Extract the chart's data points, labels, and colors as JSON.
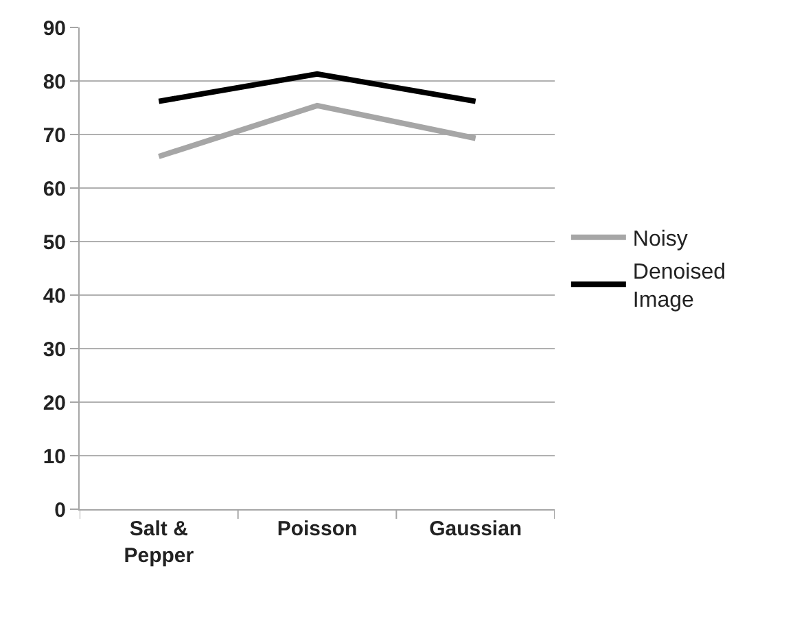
{
  "chart_data": {
    "type": "line",
    "categories": [
      "Salt &\nPepper",
      "Poisson",
      "Gaussian"
    ],
    "series": [
      {
        "name": "Noisy",
        "color": "#a6a6a6",
        "values": [
          65.9,
          75.4,
          69.3
        ]
      },
      {
        "name": "Denoised\nImage",
        "color": "#000000",
        "values": [
          76.2,
          81.3,
          76.2
        ]
      }
    ],
    "ylim": [
      0,
      90
    ],
    "yticks": [
      0,
      10,
      20,
      30,
      40,
      50,
      60,
      70,
      80,
      90
    ],
    "grid": "y",
    "legend": "right",
    "marker": "none",
    "line_style": "solid"
  }
}
